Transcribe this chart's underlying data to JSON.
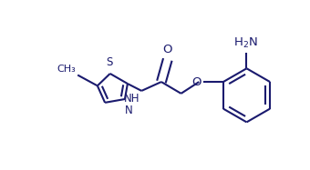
{
  "bg_color": "#ffffff",
  "line_color": "#1a1a6e",
  "line_width": 1.5,
  "font_size": 8.5,
  "figsize": [
    3.4,
    1.87
  ],
  "dpi": 100,
  "xlim": [
    0,
    3.4
  ],
  "ylim": [
    0,
    1.87
  ]
}
